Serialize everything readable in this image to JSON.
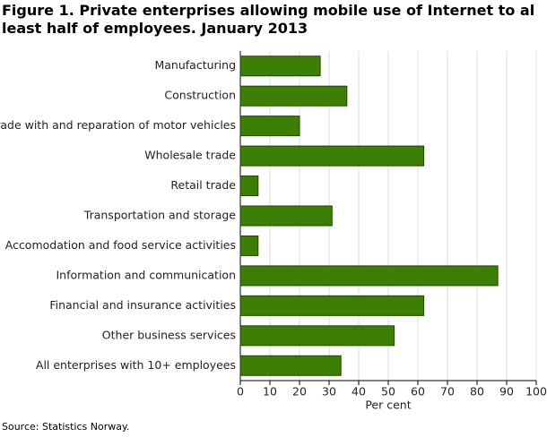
{
  "chart_data": {
    "type": "bar",
    "orientation": "horizontal",
    "title": "Figure 1. Private enterprises allowing mobile use of Internet to al least half of employees. January 2013",
    "x_label": "Per cent",
    "source": "Source: Statistics Norway.",
    "categories": [
      "Manufacturing",
      "Construction",
      "Trade with and reparation of motor vehicles",
      "Wholesale trade",
      "Retail trade",
      "Transportation and storage",
      "Accomodation and food service activities",
      "Information and communication",
      "Financial and insurance activities",
      "Other business services",
      "All enterprises with 10+ employees"
    ],
    "values": [
      27,
      36,
      20,
      62,
      6,
      31,
      6,
      87,
      62,
      52,
      34
    ],
    "color": "#3d7f04",
    "xlim": [
      0,
      100
    ],
    "xticks": [
      0,
      10,
      20,
      30,
      40,
      50,
      60,
      70,
      80,
      90,
      100
    ],
    "grid": true
  }
}
